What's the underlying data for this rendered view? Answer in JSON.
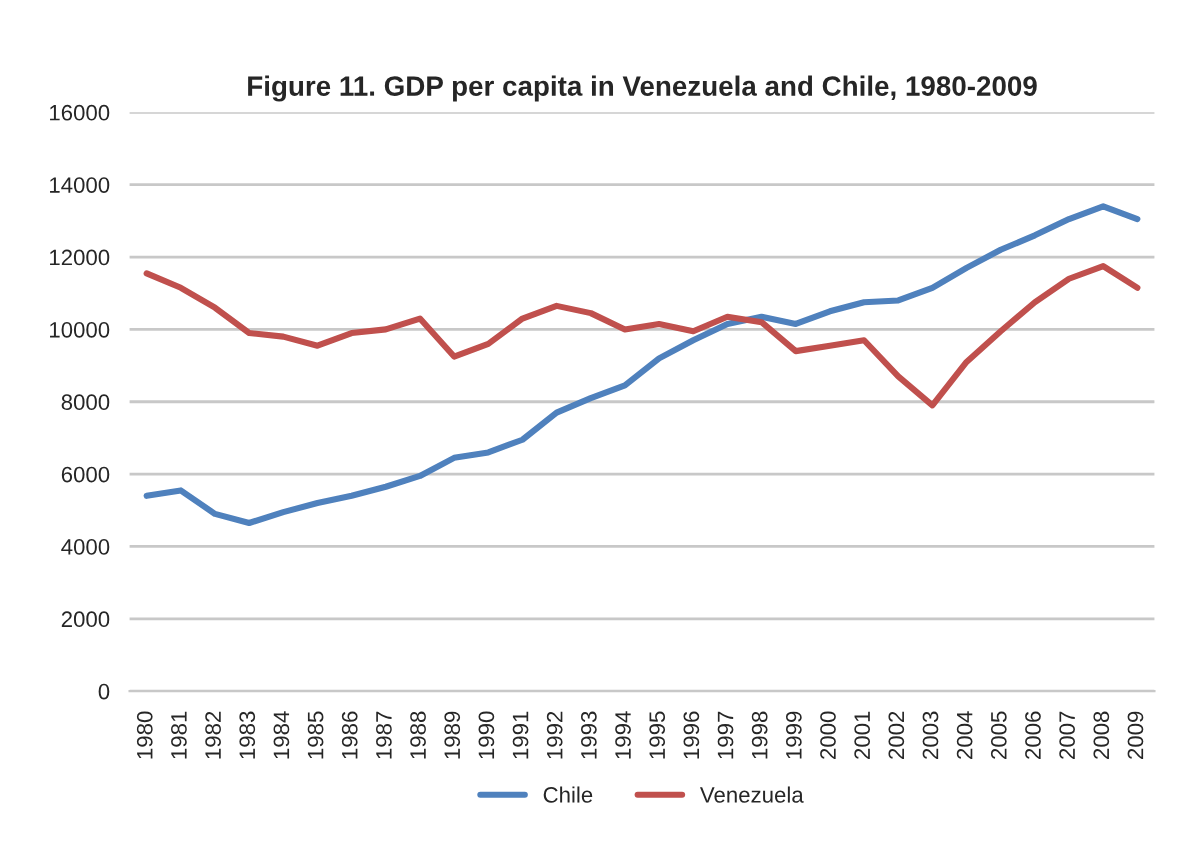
{
  "chart_data": {
    "type": "line",
    "title": "Figure 11. GDP per capita in Venezuela and Chile, 1980-2009",
    "categories": [
      "1980",
      "1981",
      "1982",
      "1983",
      "1984",
      "1985",
      "1986",
      "1987",
      "1988",
      "1989",
      "1990",
      "1991",
      "1992",
      "1993",
      "1994",
      "1995",
      "1996",
      "1997",
      "1998",
      "1999",
      "2000",
      "2001",
      "2002",
      "2003",
      "2004",
      "2005",
      "2006",
      "2007",
      "2008",
      "2009"
    ],
    "series": [
      {
        "name": "Chile",
        "color": "#4f81bd",
        "values": [
          5400,
          5550,
          4900,
          4650,
          4950,
          5200,
          5400,
          5650,
          5950,
          6450,
          6600,
          6950,
          7700,
          8100,
          8450,
          9200,
          9700,
          10150,
          10350,
          10150,
          10500,
          10750,
          10800,
          11150,
          11700,
          12200,
          12600,
          13050,
          13400,
          13050
        ]
      },
      {
        "name": "Venezuela",
        "color": "#c0504d",
        "values": [
          11550,
          11150,
          10600,
          9900,
          9800,
          9550,
          9900,
          10000,
          10300,
          9250,
          9600,
          10300,
          10650,
          10450,
          10000,
          10150,
          9950,
          10350,
          10200,
          9400,
          9550,
          9700,
          8700,
          7900,
          9100,
          9950,
          10750,
          11400,
          11750,
          11150
        ]
      }
    ],
    "ylim": [
      0,
      16000
    ],
    "yticks": [
      0,
      2000,
      4000,
      6000,
      8000,
      10000,
      12000,
      14000,
      16000
    ],
    "grid": "y",
    "legend": "bottom",
    "marker": "none",
    "line_style": "solid"
  }
}
